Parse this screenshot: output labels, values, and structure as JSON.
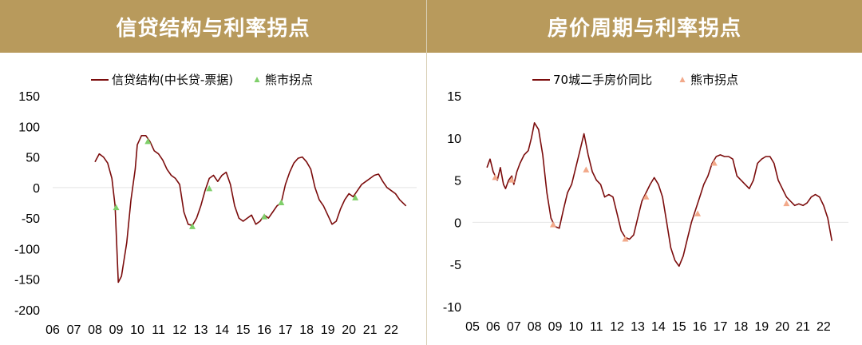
{
  "colors": {
    "header": "#b89a5c",
    "line": "#7b0c0c",
    "left_marker": "#7fcf6a",
    "right_marker": "#f2a98a"
  },
  "chart_data": [
    {
      "type": "line",
      "title": "信贷结构与利率拐点",
      "legend": {
        "placement": "top-center",
        "line_label": "信贷结构(中长贷-票据)",
        "marker_label": "熊市拐点"
      },
      "ylim": [
        -200,
        150
      ],
      "yticks": [
        150,
        100,
        50,
        0,
        -50,
        -100,
        -150,
        -200
      ],
      "xlim": [
        2006,
        2023.2
      ],
      "xtick_labels": [
        "06",
        "07",
        "08",
        "09",
        "10",
        "11",
        "12",
        "13",
        "14",
        "15",
        "16",
        "17",
        "18",
        "19",
        "20",
        "21",
        "22"
      ],
      "xtick_values": [
        2006,
        2007,
        2008,
        2009,
        2010,
        2011,
        2012,
        2013,
        2014,
        2015,
        2016,
        2017,
        2018,
        2019,
        2020,
        2021,
        2022
      ],
      "series": [
        {
          "x": [
            2008.0,
            2008.2,
            2008.4,
            2008.6,
            2008.8,
            2008.95,
            2009.1,
            2009.25,
            2009.5,
            2009.7,
            2009.9,
            2010.0,
            2010.2,
            2010.4,
            2010.6,
            2010.8,
            2011.0,
            2011.2,
            2011.4,
            2011.6,
            2011.8,
            2012.0,
            2012.2,
            2012.4,
            2012.6,
            2012.8,
            2013.0,
            2013.2,
            2013.4,
            2013.6,
            2013.8,
            2014.0,
            2014.2,
            2014.4,
            2014.6,
            2014.8,
            2015.0,
            2015.2,
            2015.4,
            2015.6,
            2015.8,
            2016.0,
            2016.2,
            2016.4,
            2016.6,
            2016.8,
            2017.0,
            2017.2,
            2017.4,
            2017.6,
            2017.8,
            2018.0,
            2018.2,
            2018.4,
            2018.6,
            2018.8,
            2019.0,
            2019.2,
            2019.4,
            2019.6,
            2019.8,
            2020.0,
            2020.2,
            2020.4,
            2020.6,
            2020.8,
            2021.0,
            2021.2,
            2021.4,
            2021.6,
            2021.8,
            2022.0,
            2022.2,
            2022.4,
            2022.7
          ],
          "y": [
            42,
            55,
            50,
            40,
            15,
            -30,
            -155,
            -145,
            -90,
            -20,
            30,
            70,
            85,
            85,
            75,
            60,
            55,
            45,
            30,
            20,
            15,
            5,
            -40,
            -60,
            -62,
            -50,
            -30,
            -5,
            15,
            20,
            10,
            20,
            25,
            5,
            -30,
            -50,
            -55,
            -50,
            -45,
            -60,
            -55,
            -45,
            -50,
            -40,
            -30,
            -25,
            5,
            25,
            40,
            48,
            50,
            42,
            30,
            0,
            -20,
            -30,
            -45,
            -60,
            -55,
            -35,
            -20,
            -10,
            -15,
            -5,
            5,
            10,
            15,
            20,
            22,
            10,
            0,
            -5,
            -10,
            -20,
            -30
          ]
        }
      ],
      "markers": {
        "x": [
          2009.0,
          2010.5,
          2012.6,
          2013.4,
          2016.0,
          2016.8,
          2020.3
        ],
        "y": [
          -33,
          75,
          -64,
          -2,
          -48,
          -25,
          -17
        ]
      }
    },
    {
      "type": "line",
      "title": "房价周期与利率拐点",
      "legend": {
        "placement": "top-center",
        "line_label": "70城二手房价同比",
        "marker_label": "熊市拐点"
      },
      "ylim": [
        -10,
        15
      ],
      "yticks": [
        15,
        10,
        5,
        0,
        -5,
        -10
      ],
      "xlim": [
        2005,
        2023.2
      ],
      "xtick_labels": [
        "05",
        "06",
        "07",
        "08",
        "09",
        "10",
        "11",
        "12",
        "13",
        "14",
        "15",
        "16",
        "17",
        "18",
        "19",
        "20",
        "21",
        "22"
      ],
      "xtick_values": [
        2005,
        2006,
        2007,
        2008,
        2009,
        2010,
        2011,
        2012,
        2013,
        2014,
        2015,
        2016,
        2017,
        2018,
        2019,
        2020,
        2021,
        2022
      ],
      "series": [
        {
          "x": [
            2005.7,
            2005.85,
            2006.0,
            2006.1,
            2006.2,
            2006.35,
            2006.5,
            2006.6,
            2006.75,
            2006.9,
            2007.0,
            2007.15,
            2007.3,
            2007.5,
            2007.7,
            2007.85,
            2008.0,
            2008.2,
            2008.4,
            2008.6,
            2008.8,
            2009.0,
            2009.2,
            2009.4,
            2009.6,
            2009.8,
            2010.0,
            2010.2,
            2010.4,
            2010.6,
            2010.8,
            2011.0,
            2011.2,
            2011.4,
            2011.6,
            2011.8,
            2012.0,
            2012.2,
            2012.4,
            2012.6,
            2012.8,
            2013.0,
            2013.2,
            2013.4,
            2013.6,
            2013.8,
            2014.0,
            2014.2,
            2014.4,
            2014.6,
            2014.8,
            2015.0,
            2015.2,
            2015.4,
            2015.6,
            2015.8,
            2016.0,
            2016.2,
            2016.4,
            2016.6,
            2016.8,
            2017.0,
            2017.2,
            2017.4,
            2017.6,
            2017.8,
            2018.0,
            2018.2,
            2018.4,
            2018.6,
            2018.8,
            2019.0,
            2019.2,
            2019.4,
            2019.6,
            2019.8,
            2020.0,
            2020.2,
            2020.4,
            2020.6,
            2020.8,
            2021.0,
            2021.2,
            2021.4,
            2021.6,
            2021.8,
            2022.0,
            2022.2,
            2022.4
          ],
          "y": [
            6.5,
            7.5,
            6.0,
            5.5,
            5.0,
            6.5,
            4.5,
            4.0,
            5.0,
            5.5,
            4.5,
            6.0,
            7.0,
            8.0,
            8.5,
            10.0,
            11.8,
            11.0,
            8.0,
            3.5,
            0.5,
            -0.5,
            -0.7,
            1.5,
            3.5,
            4.5,
            6.5,
            8.5,
            10.5,
            8.0,
            6.0,
            5.0,
            4.5,
            3.0,
            3.3,
            3.0,
            1.0,
            -1.0,
            -1.8,
            -2.0,
            -1.5,
            0.5,
            2.5,
            3.5,
            4.5,
            5.3,
            4.5,
            3.0,
            0.0,
            -3.0,
            -4.5,
            -5.2,
            -4.0,
            -2.0,
            0.0,
            1.5,
            3.0,
            4.5,
            5.5,
            7.0,
            7.8,
            8.0,
            7.8,
            7.8,
            7.5,
            5.5,
            5.0,
            4.5,
            4.0,
            5.0,
            7.0,
            7.5,
            7.8,
            7.8,
            7.0,
            5.0,
            4.0,
            3.0,
            2.5,
            2.0,
            2.2,
            2.0,
            2.3,
            3.0,
            3.3,
            3.0,
            2.0,
            0.5,
            -2.2
          ]
        }
      ],
      "markers": {
        "x": [
          2006.1,
          2006.9,
          2008.9,
          2010.5,
          2012.4,
          2013.4,
          2015.9,
          2016.7,
          2020.2
        ],
        "y": [
          5.3,
          5.0,
          -0.3,
          6.2,
          -2.0,
          3.0,
          1.0,
          7.0,
          2.2
        ]
      }
    }
  ]
}
